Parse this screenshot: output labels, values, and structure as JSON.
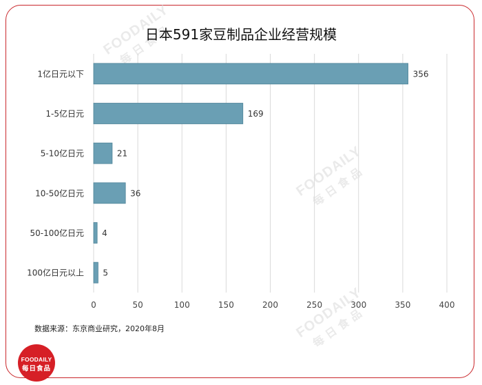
{
  "chart_data": {
    "type": "bar",
    "orientation": "horizontal",
    "title": "日本591家豆制品企业经营规模",
    "categories": [
      "1亿日元以下",
      "1-5亿日元",
      "5-10亿日元",
      "10-50亿日元",
      "50-100亿日元",
      "100亿日元以上"
    ],
    "values": [
      356,
      169,
      21,
      36,
      4,
      5
    ],
    "data_labels": [
      "356",
      "169",
      "21",
      "36",
      "4",
      "5"
    ],
    "xlim": [
      0,
      400
    ],
    "x_ticks": [
      0,
      50,
      100,
      150,
      200,
      250,
      300,
      350,
      400
    ],
    "grid": "vertical",
    "bar_color": "#6a9fb4",
    "bar_edge_color": "#4f8498",
    "legend": "none"
  },
  "source_note": "数据来源：东京商业研究，2020年8月",
  "logo": {
    "brand": "FOODAILY",
    "sub": "每日食品"
  },
  "watermark": {
    "brand": "FOODAILY",
    "sub": "每日食品"
  },
  "colors": {
    "frame": "#c9262a",
    "logo_bg": "#d61f26"
  }
}
